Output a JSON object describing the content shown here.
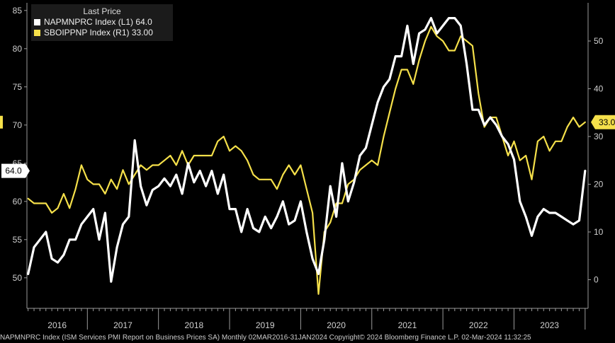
{
  "legend": {
    "header": "Last Price",
    "items": [
      {
        "label": "NAPMNPRC Index  (L1)",
        "value": "64.0",
        "color": "#ffffff"
      },
      {
        "label": "SBOIPPNP Index  (R1)",
        "value": "33.00",
        "color": "#f5e04a"
      }
    ]
  },
  "footer": "NAPMNPRC Index (ISM Services PMI Report on Business Prices SA)  Monthly 02MAR2016-31JAN2024  Copyright© 2024 Bloomberg Finance L.P.   02-Mar-2024 11:32:25",
  "chart_data": {
    "type": "line",
    "x_range": [
      "2016-03",
      "2024-01"
    ],
    "xticks": [
      "2016",
      "2017",
      "2018",
      "2019",
      "2020",
      "2021",
      "2022",
      "2023"
    ],
    "y_left": {
      "min": 46,
      "max": 86,
      "ticks": [
        50,
        55,
        60,
        65,
        70,
        75,
        80,
        85
      ]
    },
    "y_right": {
      "min": -6,
      "max": 58,
      "ticks": [
        0,
        10,
        20,
        30,
        40,
        50
      ]
    },
    "last_value_labels": {
      "left": "64.0",
      "right": "33.00"
    },
    "series": [
      {
        "name": "NAPMNPRC Index  (L1)",
        "axis": "left",
        "color": "#ffffff",
        "x": [
          "2016-03",
          "2016-04",
          "2016-05",
          "2016-06",
          "2016-07",
          "2016-08",
          "2016-09",
          "2016-10",
          "2016-11",
          "2016-12",
          "2017-01",
          "2017-02",
          "2017-03",
          "2017-04",
          "2017-05",
          "2017-06",
          "2017-07",
          "2017-08",
          "2017-09",
          "2017-10",
          "2017-11",
          "2017-12",
          "2018-01",
          "2018-02",
          "2018-03",
          "2018-04",
          "2018-05",
          "2018-06",
          "2018-07",
          "2018-08",
          "2018-09",
          "2018-10",
          "2018-11",
          "2018-12",
          "2019-01",
          "2019-02",
          "2019-03",
          "2019-04",
          "2019-05",
          "2019-06",
          "2019-07",
          "2019-08",
          "2019-09",
          "2019-10",
          "2019-11",
          "2019-12",
          "2020-01",
          "2020-02",
          "2020-03",
          "2020-04",
          "2020-05",
          "2020-06",
          "2020-07",
          "2020-08",
          "2020-09",
          "2020-10",
          "2020-11",
          "2020-12",
          "2021-01",
          "2021-02",
          "2021-03",
          "2021-04",
          "2021-05",
          "2021-06",
          "2021-07",
          "2021-08",
          "2021-09",
          "2021-10",
          "2021-11",
          "2021-12",
          "2022-01",
          "2022-02",
          "2022-03",
          "2022-04",
          "2022-05",
          "2022-06",
          "2022-07",
          "2022-08",
          "2022-09",
          "2022-10",
          "2022-11",
          "2022-12",
          "2023-01",
          "2023-02",
          "2023-03",
          "2023-04",
          "2023-05",
          "2023-06",
          "2023-07",
          "2023-08",
          "2023-09",
          "2023-10",
          "2023-11",
          "2023-12",
          "2024-01"
        ],
        "values": [
          50.5,
          54.0,
          55.0,
          56.0,
          52.5,
          52.0,
          53.0,
          55.0,
          55.0,
          57.0,
          58.0,
          59.0,
          55.0,
          58.5,
          49.5,
          54.0,
          57.0,
          58.0,
          68.0,
          62.0,
          59.5,
          61.5,
          62.0,
          63.0,
          62.0,
          63.5,
          61.0,
          65.0,
          62.5,
          64.0,
          62.0,
          64.0,
          61.0,
          63.5,
          59.0,
          59.0,
          56.0,
          59.0,
          56.5,
          56.0,
          58.0,
          56.5,
          58.0,
          60.0,
          57.0,
          57.5,
          60.0,
          56.0,
          52.5,
          50.5,
          55.0,
          62.0,
          58.0,
          65.0,
          60.0,
          62.5,
          66.0,
          67.0,
          70.0,
          73.0,
          75.0,
          76.0,
          79.0,
          79.0,
          83.0,
          78.0,
          82.0,
          82.5,
          84.0,
          82.0,
          83.0,
          84.0,
          84.0,
          83.0,
          78.0,
          72.0,
          72.0,
          70.0,
          71.0,
          70.0,
          68.5,
          67.5,
          65.5,
          60.0,
          58.0,
          55.5,
          58.0,
          59.0,
          58.5,
          58.5,
          58.0,
          57.5,
          57.0,
          57.5,
          64.0
        ]
      },
      {
        "name": "SBOIPPNP Index  (R1)",
        "axis": "right",
        "color": "#f5e04a",
        "x": [
          "2016-03",
          "2016-04",
          "2016-05",
          "2016-06",
          "2016-07",
          "2016-08",
          "2016-09",
          "2016-10",
          "2016-11",
          "2016-12",
          "2017-01",
          "2017-02",
          "2017-03",
          "2017-04",
          "2017-05",
          "2017-06",
          "2017-07",
          "2017-08",
          "2017-09",
          "2017-10",
          "2017-11",
          "2017-12",
          "2018-01",
          "2018-02",
          "2018-03",
          "2018-04",
          "2018-05",
          "2018-06",
          "2018-07",
          "2018-08",
          "2018-09",
          "2018-10",
          "2018-11",
          "2018-12",
          "2019-01",
          "2019-02",
          "2019-03",
          "2019-04",
          "2019-05",
          "2019-06",
          "2019-07",
          "2019-08",
          "2019-09",
          "2019-10",
          "2019-11",
          "2019-12",
          "2020-01",
          "2020-02",
          "2020-03",
          "2020-04",
          "2020-05",
          "2020-06",
          "2020-07",
          "2020-08",
          "2020-09",
          "2020-10",
          "2020-11",
          "2020-12",
          "2021-01",
          "2021-02",
          "2021-03",
          "2021-04",
          "2021-05",
          "2021-06",
          "2021-07",
          "2021-08",
          "2021-09",
          "2021-10",
          "2021-11",
          "2021-12",
          "2022-01",
          "2022-02",
          "2022-03",
          "2022-04",
          "2022-05",
          "2022-06",
          "2022-07",
          "2022-08",
          "2022-09",
          "2022-10",
          "2022-11",
          "2022-12",
          "2023-01",
          "2023-02",
          "2023-03",
          "2023-04",
          "2023-05",
          "2023-06",
          "2023-07",
          "2023-08",
          "2023-09",
          "2023-10",
          "2023-11",
          "2023-12",
          "2024-01"
        ],
        "values": [
          17,
          16,
          16,
          16,
          14,
          15,
          18,
          15,
          19,
          24,
          21,
          20,
          20,
          18,
          21,
          19,
          23,
          20,
          22,
          24,
          23,
          24,
          24,
          25,
          26,
          24,
          27,
          24,
          26,
          26,
          26,
          26,
          29,
          30,
          27,
          28,
          27,
          25,
          22,
          21,
          21,
          21,
          19,
          22,
          24,
          22,
          24,
          19,
          14,
          -3,
          10,
          12,
          16,
          16,
          20,
          21,
          23,
          24,
          25,
          24,
          30,
          35,
          40,
          44,
          44,
          41,
          46,
          50,
          53,
          51,
          50,
          48,
          48,
          51,
          50,
          49,
          39,
          32,
          34,
          34,
          30,
          26,
          29,
          25,
          26,
          21,
          29,
          30,
          27,
          29,
          29,
          32,
          34,
          32,
          33
        ]
      }
    ]
  }
}
